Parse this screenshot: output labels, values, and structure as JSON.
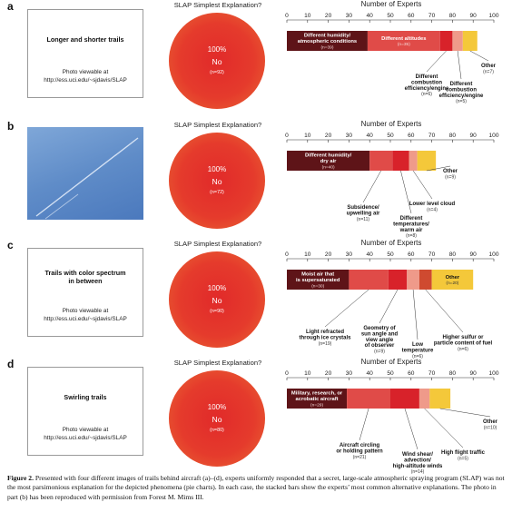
{
  "pie_title": "SLAP Simplest Explanation?",
  "chart_title": "Number of Experts",
  "panels": [
    {
      "letter": "a",
      "image_title": "Longer and shorter trails",
      "image_note": "Photo viewable at\nhttp://ess.uci.edu/~sjdavis/SLAP",
      "pie": {
        "pct": "100%",
        "label": "No",
        "n": "(n=92)"
      }
    },
    {
      "letter": "b",
      "image_title": "",
      "image_note": "",
      "pie": {
        "pct": "100%",
        "label": "No",
        "n": "(n=72)"
      }
    },
    {
      "letter": "c",
      "image_title": "Trails with color spectrum\nin between",
      "image_note": "Photo viewable at\nhttp://ess.uci.edu/~sjdavis/SLAP",
      "pie": {
        "pct": "100%",
        "label": "No",
        "n": "(n=90)"
      }
    },
    {
      "letter": "d",
      "image_title": "Swirling trails",
      "image_note": "Photo viewable at\nhttp://ess.uci.edu/~sjdavis/SLAP",
      "pie": {
        "pct": "100%",
        "label": "No",
        "n": "(n=80)"
      }
    }
  ],
  "chart_data": [
    {
      "type": "bar",
      "orientation": "horizontal-stacked",
      "title": "Number of Experts",
      "xlim": [
        0,
        100
      ],
      "ticks": [
        0,
        10,
        20,
        30,
        40,
        50,
        60,
        70,
        80,
        90,
        100
      ],
      "segments": [
        {
          "label": "Different humidity/\natmospheric conditions",
          "n": "(n=39)",
          "value": 39,
          "color": "#5e1418",
          "inside": true
        },
        {
          "label": "Different altitudes",
          "n": "(n=35)",
          "value": 35,
          "color": "#e04b48",
          "inside": true
        },
        {
          "label": "Different\ncombustion\nefficiency/engine",
          "n": "(n=6)",
          "value": 6,
          "color": "#d8222a",
          "inside": false
        },
        {
          "label": "Different\ncombustion\nefficiency/engine",
          "n": "(n=5)",
          "value": 5,
          "color": "#ef9a8a",
          "inside": false
        },
        {
          "label": "Other",
          "n": "(n=7)",
          "value": 7,
          "color": "#f4c83a",
          "inside": false
        }
      ]
    },
    {
      "type": "bar",
      "orientation": "horizontal-stacked",
      "title": "Number of Experts",
      "xlim": [
        0,
        100
      ],
      "ticks": [
        0,
        10,
        20,
        30,
        40,
        50,
        60,
        70,
        80,
        90,
        100
      ],
      "segments": [
        {
          "label": "Different humidity/\ndry air",
          "n": "(n=40)",
          "value": 40,
          "color": "#5e1418",
          "inside": true
        },
        {
          "label": "Subsidence/\nupwelling air",
          "n": "(n=11)",
          "value": 11,
          "color": "#e04b48",
          "inside": false
        },
        {
          "label": "Different\ntemperatures/\nwarm air",
          "n": "(n=8)",
          "value": 8,
          "color": "#d8222a",
          "inside": false
        },
        {
          "label": "Lower level cloud",
          "n": "(n=4)",
          "value": 4,
          "color": "#ef9a8a",
          "inside": false
        },
        {
          "label": "Other",
          "n": "(n=9)",
          "value": 9,
          "color": "#f4c83a",
          "inside": false
        }
      ]
    },
    {
      "type": "bar",
      "orientation": "horizontal-stacked",
      "title": "Number of Experts",
      "xlim": [
        0,
        100
      ],
      "ticks": [
        0,
        10,
        20,
        30,
        40,
        50,
        60,
        70,
        80,
        90,
        100
      ],
      "segments": [
        {
          "label": "Moist air that\nis supersaturated",
          "n": "(n=30)",
          "value": 30,
          "color": "#5e1418",
          "inside": true
        },
        {
          "label": "Light refracted\nthrough ice crystals",
          "n": "(n=19)",
          "value": 19,
          "color": "#e04b48",
          "inside": false
        },
        {
          "label": "Geometry of\nsun angle and\nview angle\nof observer",
          "n": "(n=9)",
          "value": 9,
          "color": "#d8222a",
          "inside": false
        },
        {
          "label": "Low\ntemperature",
          "n": "(n=6)",
          "value": 6,
          "color": "#ef9a8a",
          "inside": false
        },
        {
          "label": "Higher sulfur or\nparticle content of fuel",
          "n": "(n=6)",
          "value": 6,
          "color": "#cf4a30",
          "inside": false
        },
        {
          "label": "Other",
          "n": "(n=20)",
          "value": 20,
          "color": "#f4c83a",
          "inside": true
        }
      ]
    },
    {
      "type": "bar",
      "orientation": "horizontal-stacked",
      "title": "Number of Experts",
      "xlim": [
        0,
        100
      ],
      "ticks": [
        0,
        10,
        20,
        30,
        40,
        50,
        60,
        70,
        80,
        90,
        100
      ],
      "segments": [
        {
          "label": "Military, research, or\nacrobatic aircraft",
          "n": "(n=29)",
          "value": 29,
          "color": "#5e1418",
          "inside": true
        },
        {
          "label": "Aircraft circling\nor holding pattern",
          "n": "(n=21)",
          "value": 21,
          "color": "#e04b48",
          "inside": false
        },
        {
          "label": "Wind shear/\nadvection/\nhigh-altitude winds",
          "n": "(n=14)",
          "value": 14,
          "color": "#d8222a",
          "inside": false
        },
        {
          "label": "High flight traffic",
          "n": "(n=5)",
          "value": 5,
          "color": "#ef9a8a",
          "inside": false
        },
        {
          "label": "Other",
          "n": "(n=10)",
          "value": 10,
          "color": "#f4c83a",
          "inside": false
        }
      ]
    }
  ],
  "caption": {
    "label": "Figure 2.",
    "text": "Presented with four different images of trails behind aircraft (a)–(d), experts uniformly responded that a secret, large-scale atmospheric spraying program (SLAP) was not the most parsimonious explanation for the depicted phenomena (pie charts). In each case, the stacked bars show the experts’ most common alternative explanations. The photo in part (b) has been reproduced with permission from Forest M. Mims III."
  }
}
